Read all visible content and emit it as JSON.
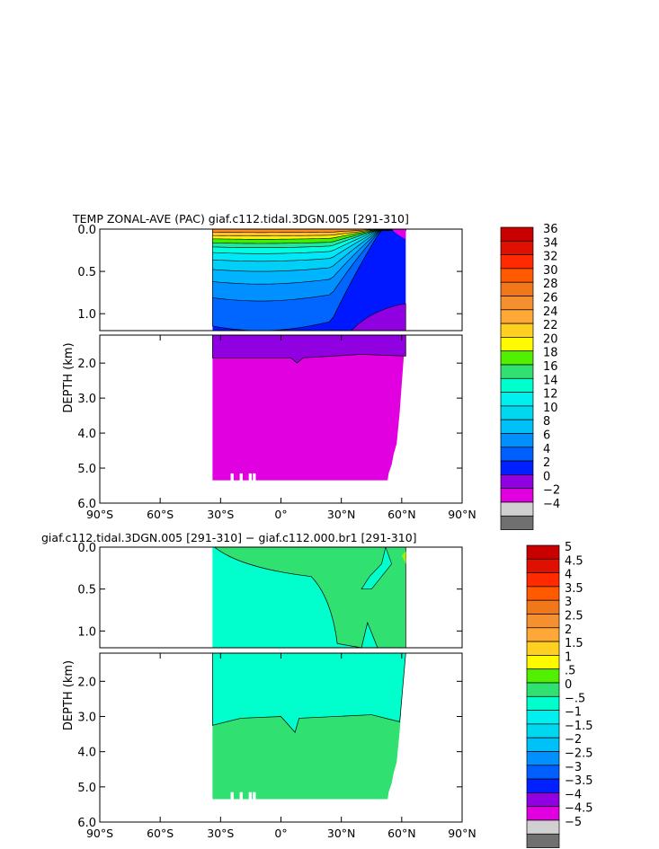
{
  "chart_data": [
    {
      "type": "heatmap",
      "title": "TEMP ZONAL-AVE (PAC) giaf.c112.tidal.3DGN.005 [291-310]",
      "xlabel": "",
      "ylabel": "DEPTH (km)",
      "xlim": [
        -90,
        90
      ],
      "x_ticks": [
        "90°S",
        "60°S",
        "30°S",
        "0°",
        "30°N",
        "60°N",
        "90°N"
      ],
      "y_ticks_upper": [
        "0.0",
        "0.5",
        "1.0"
      ],
      "y_ticks_lower": [
        "2.0",
        "3.0",
        "4.0",
        "5.0",
        "6.0"
      ],
      "data_extent": {
        "lat_min": -34,
        "lat_max": 62,
        "depth_max_km": 5.35
      },
      "colorbar": {
        "labels": [
          "36",
          "34",
          "32",
          "30",
          "28",
          "26",
          "24",
          "22",
          "20",
          "18",
          "16",
          "14",
          "12",
          "10",
          "8",
          "6",
          "4",
          "2",
          "0",
          "−2",
          "−4"
        ],
        "colors": [
          "#c80000",
          "#e01000",
          "#ff2a00",
          "#ff5a00",
          "#f07818",
          "#f59030",
          "#ffa838",
          "#ffd020",
          "#fffa00",
          "#50f000",
          "#30e070",
          "#00ffcc",
          "#00f0f0",
          "#00d8f0",
          "#00c0f8",
          "#0090ff",
          "#0060ff",
          "#0020ff",
          "#9000e0",
          "#e000e0",
          "#d0d0d0",
          "#707070"
        ]
      },
      "upper_contours_depth_km": [
        0.0,
        0.04,
        0.08,
        0.12,
        0.17,
        0.22,
        0.29,
        0.38,
        0.5,
        0.65,
        0.85,
        1.2
      ],
      "upper_band_colors": [
        "#ff9020",
        "#ffc030",
        "#fff000",
        "#40f000",
        "#20e8a0",
        "#00ffe0",
        "#00e8f8",
        "#00cff8",
        "#00b4ff",
        "#0090ff",
        "#0066ff",
        "#0018ff"
      ],
      "lower_layers": [
        {
          "from_km": 1.2,
          "to_km": 1.85,
          "color": "#9000e0"
        },
        {
          "from_km": 1.85,
          "to_km": 5.35,
          "color": "#e000e0"
        }
      ]
    },
    {
      "type": "heatmap",
      "title": "giaf.c112.tidal.3DGN.005 [291-310] − giaf.c112.000.br1 [291-310]",
      "xlabel": "",
      "ylabel": "DEPTH (km)",
      "xlim": [
        -90,
        90
      ],
      "x_ticks": [
        "90°S",
        "60°S",
        "30°S",
        "0°",
        "30°N",
        "60°N",
        "90°N"
      ],
      "y_ticks_upper": [
        "0.0",
        "0.5",
        "1.0"
      ],
      "y_ticks_lower": [
        "2.0",
        "3.0",
        "4.0",
        "5.0",
        "6.0"
      ],
      "data_extent": {
        "lat_min": -34,
        "lat_max": 62,
        "depth_max_km": 5.35
      },
      "colorbar": {
        "labels": [
          "5",
          "4.5",
          "4",
          "3.5",
          "3",
          "2.5",
          "2",
          "1.5",
          "1",
          ".5",
          "0",
          "−.5",
          "−1",
          "−1.5",
          "−2",
          "−2.5",
          "−3",
          "−3.5",
          "−4",
          "−4.5",
          "−5"
        ],
        "colors": [
          "#c80000",
          "#e01000",
          "#ff2a00",
          "#ff5a00",
          "#f07818",
          "#f59030",
          "#ffa838",
          "#ffd020",
          "#fffa00",
          "#50f000",
          "#30e070",
          "#00ffcc",
          "#00f0f0",
          "#00d8f0",
          "#00c0f8",
          "#0090ff",
          "#0060ff",
          "#0020ff",
          "#9000e0",
          "#e000e0",
          "#d0d0d0",
          "#707070"
        ]
      },
      "positive_color": "#30e070",
      "negative_color": "#00ffcc",
      "zero_contour_deep_km": 3.25
    }
  ]
}
